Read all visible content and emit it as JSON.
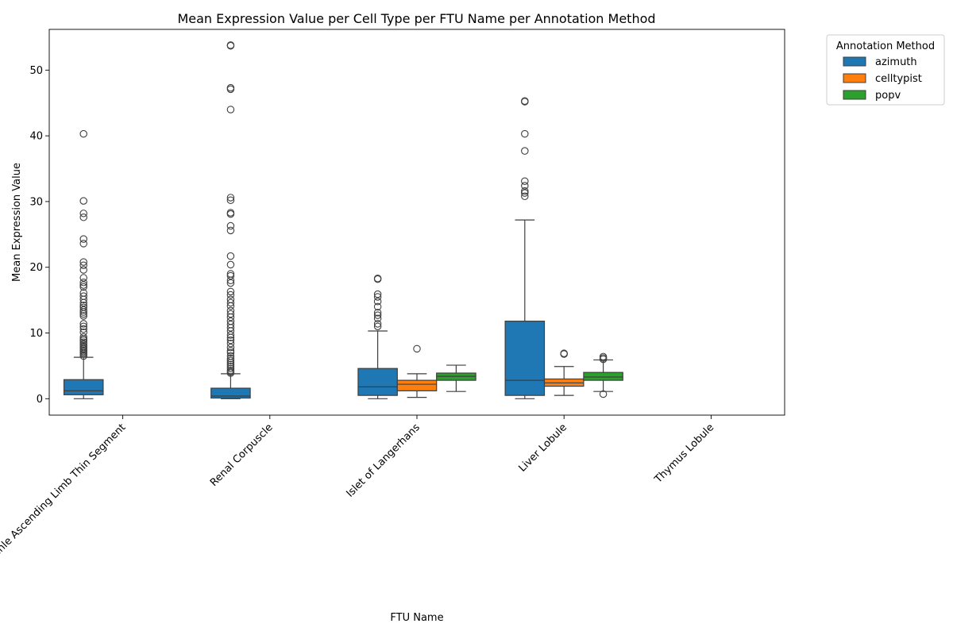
{
  "chart_data": {
    "type": "box",
    "title": "Mean Expression Value per Cell Type per FTU Name per Annotation Method",
    "xlabel": "FTU Name",
    "ylabel": "Mean Expression Value",
    "ylim": [
      -2.5,
      56.2
    ],
    "yticks": [
      0,
      10,
      20,
      30,
      40,
      50
    ],
    "categories": [
      "Loop Of Henle Ascending Limb Thin Segment",
      "Renal Corpuscle",
      "Islet of Langerhans",
      "Liver Lobule",
      "Thymus Lobule"
    ],
    "legend": {
      "title": "Annotation Method",
      "position": "upper-right-outside"
    },
    "series": [
      {
        "name": "azimuth",
        "color": "#1f77b4",
        "boxes": [
          {
            "category": 0,
            "q1": 0.6,
            "median": 1.2,
            "q3": 2.9,
            "whislo": 0.0,
            "whishi": 6.3,
            "fliers": [
              6.5,
              6.8,
              7.0,
              7.2,
              7.4,
              7.6,
              7.8,
              8.0,
              8.3,
              8.6,
              8.9,
              9.1,
              9.4,
              10.1,
              10.6,
              11.0,
              11.4,
              12.6,
              12.9,
              13.2,
              13.5,
              13.9,
              14.2,
              14.6,
              15.1,
              15.6,
              16.1,
              17.0,
              17.3,
              17.7,
              18.4,
              19.6,
              20.3,
              20.8,
              23.6,
              24.3,
              27.6,
              28.2,
              30.1,
              40.3
            ]
          },
          {
            "category": 1,
            "q1": 0.1,
            "median": 0.4,
            "q3": 1.6,
            "whislo": 0.0,
            "whishi": 3.8,
            "fliers": [
              3.9,
              4.1,
              4.3,
              4.6,
              4.9,
              5.2,
              5.5,
              5.8,
              6.1,
              6.5,
              7.0,
              7.3,
              7.8,
              8.4,
              8.9,
              9.3,
              9.7,
              10.3,
              10.8,
              11.3,
              11.8,
              12.4,
              12.9,
              13.4,
              14.1,
              14.6,
              15.1,
              15.8,
              16.3,
              17.6,
              18.0,
              18.7,
              19.0,
              20.4,
              21.7,
              25.6,
              26.3,
              28.1,
              28.3,
              30.2,
              30.6,
              44.0,
              47.1,
              47.3,
              53.7,
              53.8
            ]
          },
          {
            "category": 2,
            "q1": 0.5,
            "median": 1.8,
            "q3": 4.6,
            "whislo": 0.0,
            "whishi": 10.3,
            "fliers": [
              11.0,
              11.4,
              12.2,
              12.7,
              13.1,
              14.0,
              14.8,
              15.5,
              15.9,
              18.2,
              18.3
            ]
          },
          {
            "category": 3,
            "q1": 0.5,
            "median": 2.8,
            "q3": 11.8,
            "whislo": 0.0,
            "whishi": 27.2,
            "fliers": [
              30.8,
              31.3,
              31.6,
              32.4,
              33.1,
              37.7,
              40.3,
              45.2,
              45.3
            ]
          }
        ]
      },
      {
        "name": "celltypist",
        "color": "#ff7f0e",
        "boxes": [
          {
            "category": 2,
            "q1": 1.2,
            "median": 2.2,
            "q3": 2.8,
            "whislo": 0.2,
            "whishi": 3.8,
            "fliers": [
              7.6
            ]
          },
          {
            "category": 3,
            "q1": 1.9,
            "median": 2.4,
            "q3": 3.0,
            "whislo": 0.5,
            "whishi": 4.9,
            "fliers": [
              6.8,
              6.9
            ]
          }
        ]
      },
      {
        "name": "popv",
        "color": "#2ca02c",
        "boxes": [
          {
            "category": 2,
            "q1": 2.8,
            "median": 3.4,
            "q3": 3.9,
            "whislo": 1.1,
            "whishi": 5.1,
            "fliers": []
          },
          {
            "category": 3,
            "q1": 2.8,
            "median": 3.3,
            "q3": 4.0,
            "whislo": 1.1,
            "whishi": 5.9,
            "fliers": [
              0.7,
              6.0,
              6.2,
              6.4
            ]
          }
        ]
      }
    ]
  }
}
